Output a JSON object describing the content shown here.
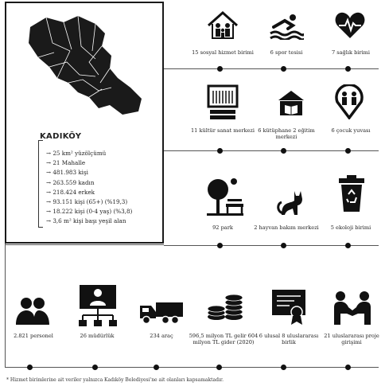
{
  "district": {
    "name": "KADIKÖY",
    "facts": [
      "25 km² yüzölçümü",
      "21 Mahalle",
      "481.983 kişi",
      "263.559 kadın",
      "218.424 erkek",
      "93.151 kişi (65+) (%19,3)",
      "18.222 kişi (0-4 yaş) (%3,8)",
      "3,6 m² kişi başı yeşil alan"
    ]
  },
  "row1": [
    {
      "icon": "family-house-icon",
      "label": "15 sosyal hizmet birimi"
    },
    {
      "icon": "swimmer-icon",
      "label": "6 spor tesisi"
    },
    {
      "icon": "heartbeat-icon",
      "label": "7 sağlık birimi"
    }
  ],
  "row2": [
    {
      "icon": "cinema-icon",
      "label": "11 kültür sanat merkezi"
    },
    {
      "icon": "library-icon",
      "label": "6 kütüphane 2 eğitim merkezi"
    },
    {
      "icon": "child-location-icon",
      "label": "6 çocuk yuvası"
    }
  ],
  "row3": [
    {
      "icon": "park-icon",
      "label": "92 park"
    },
    {
      "icon": "cat-icon",
      "label": "2 hayvan bakım merkezi"
    },
    {
      "icon": "recycle-bin-icon",
      "label": "5 ekoloji birimi"
    }
  ],
  "row4": [
    {
      "icon": "staff-icon",
      "label": "2.821 personel"
    },
    {
      "icon": "org-chart-icon",
      "label": "26 müdürlük"
    },
    {
      "icon": "truck-icon",
      "label": "234 araç"
    },
    {
      "icon": "coins-icon",
      "label": "596,5 milyon TL gelir 604 milyon TL gider (2020)"
    },
    {
      "icon": "certificate-icon",
      "label": "6 ulusal 8 uluslararası birlik"
    },
    {
      "icon": "handshake-icon",
      "label": "21 uluslararası proje girişimi"
    }
  ],
  "footnote": "* Hizmet birimlerine ait veriler yalnızca Kadıköy Belediyesi'ne ait olanları kapsamaktadır."
}
